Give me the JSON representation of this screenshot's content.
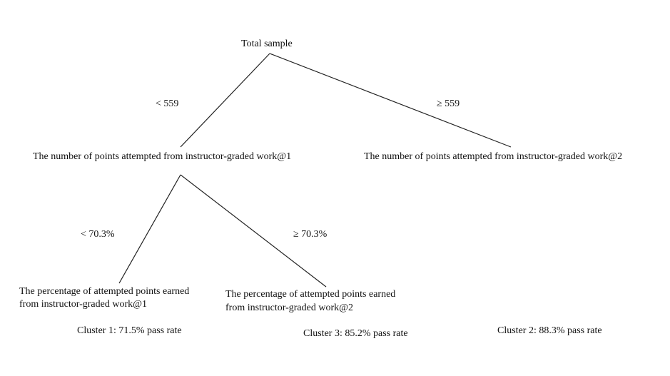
{
  "root": {
    "label": "Total sample"
  },
  "level1": {
    "left_condition": "< 559",
    "right_condition": "≥ 559",
    "left_node": "The number of points attempted from instructor-graded work@1",
    "right_node": "The number of points attempted from instructor-graded work@2"
  },
  "level2": {
    "left_condition": "< 70.3%",
    "right_condition": "≥ 70.3%",
    "left_node_line1": "The percentage of attempted points earned",
    "left_node_line2": "from instructor-graded work@1",
    "right_node_line1": "The percentage of attempted points earned",
    "right_node_line2": "from instructor-graded work@2"
  },
  "clusters": {
    "cluster1": "Cluster 1: 71.5% pass rate",
    "cluster3": "Cluster 3: 85.2% pass rate",
    "cluster2": "Cluster 2: 88.3% pass rate"
  }
}
